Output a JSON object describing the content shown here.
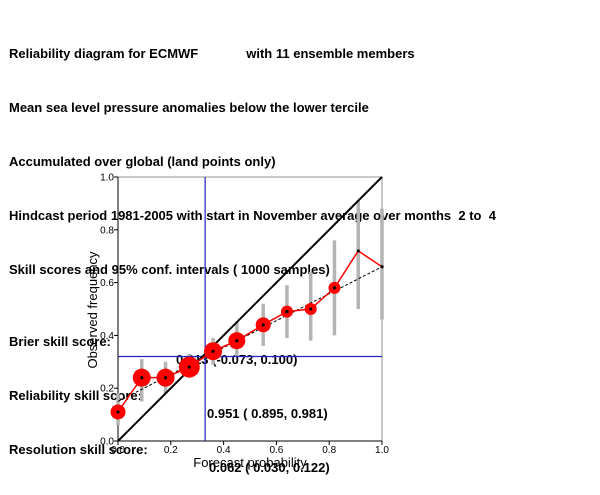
{
  "header": {
    "title_prefix": "Reliability diagram for ECMWF",
    "title_suffix": "with 11 ensemble members",
    "line2": "Mean sea level pressure anomalies below the lower tercile",
    "line3": "Accumulated over global (land points only)",
    "line4": "Hindcast period 1981-2005 with start in November average over months  2 to  4",
    "line5": "Skill scores and 95% conf. intervals ( 1000 samples)",
    "scores": [
      {
        "label": "Brier skill score:",
        "value": "0.013 (-0.073, 0.100)"
      },
      {
        "label": "Reliability skill score:",
        "value": "0.951 ( 0.895, 0.981)"
      },
      {
        "label": "Resolution skill score:",
        "value": "0.062 ( 0.030, 0.122)"
      }
    ]
  },
  "chart_data": {
    "type": "scatter",
    "xlabel": "Forecast probability",
    "ylabel": "Observed frequency",
    "xlim": [
      0,
      1
    ],
    "ylim": [
      0,
      1
    ],
    "xticks": [
      "0.0",
      "0.2",
      "0.4",
      "0.6",
      "0.8",
      "1.0"
    ],
    "yticks": [
      "0.0",
      "0.2",
      "0.4",
      "0.6",
      "0.8",
      "1.0"
    ],
    "climatology": 0.32,
    "forecast_climatology": 0.33,
    "points": [
      {
        "x": 0.0,
        "y": 0.11,
        "size": 2,
        "ci": [
          0.06,
          0.18
        ]
      },
      {
        "x": 0.09,
        "y": 0.24,
        "size": 4,
        "ci": [
          0.15,
          0.31
        ]
      },
      {
        "x": 0.18,
        "y": 0.24,
        "size": 4,
        "ci": [
          0.18,
          0.3
        ]
      },
      {
        "x": 0.27,
        "y": 0.28,
        "size": 5,
        "ci": [
          0.24,
          0.33
        ]
      },
      {
        "x": 0.36,
        "y": 0.34,
        "size": 4,
        "ci": [
          0.29,
          0.39
        ]
      },
      {
        "x": 0.45,
        "y": 0.38,
        "size": 3,
        "ci": [
          0.32,
          0.45
        ]
      },
      {
        "x": 0.55,
        "y": 0.44,
        "size": 2,
        "ci": [
          0.36,
          0.52
        ]
      },
      {
        "x": 0.64,
        "y": 0.49,
        "size": 1,
        "ci": [
          0.39,
          0.59
        ]
      },
      {
        "x": 0.73,
        "y": 0.5,
        "size": 1,
        "ci": [
          0.38,
          0.64
        ]
      },
      {
        "x": 0.82,
        "y": 0.58,
        "size": 1,
        "ci": [
          0.4,
          0.76
        ]
      },
      {
        "x": 0.91,
        "y": 0.72,
        "size": 0,
        "ci": [
          0.5,
          0.91
        ]
      },
      {
        "x": 1.0,
        "y": 0.66,
        "size": 0,
        "ci": [
          0.46,
          0.88
        ]
      }
    ],
    "fit_line": [
      [
        0.0,
        0.15
      ],
      [
        1.0,
        0.66
      ]
    ],
    "colors": {
      "observed": "#ff0000",
      "fit": "#000000",
      "diagonal": "#000000",
      "climatology": "#2323c0",
      "ci": "#b4b4b4",
      "frame": "#c8c8c8"
    }
  }
}
